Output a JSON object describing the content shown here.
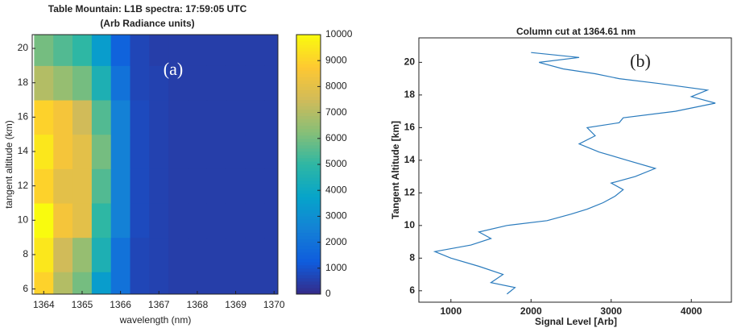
{
  "chart_data": [
    {
      "type": "heatmap",
      "title": "Table Mountain: L1B spectra: 17:59:05 UTC",
      "subtitle": "(Arb Radiance units)",
      "x_label": "wavelength (nm)",
      "y_label": "tangent altitude (km)",
      "annotation": "(a)",
      "x": [
        1364,
        1364.5,
        1365,
        1365.5,
        1366,
        1366.5,
        1367,
        1367.5,
        1368,
        1368.5,
        1369,
        1369.5,
        1370
      ],
      "y": [
        6,
        8,
        10,
        12,
        14,
        16,
        18,
        20
      ],
      "z": [
        [
          9000,
          7000,
          6000,
          3500,
          2000,
          700,
          600,
          500,
          500,
          500,
          500,
          500,
          500
        ],
        [
          9500,
          7500,
          6500,
          4500,
          2000,
          700,
          600,
          500,
          500,
          500,
          500,
          500,
          500
        ],
        [
          10000,
          8500,
          8000,
          5000,
          2500,
          800,
          600,
          500,
          500,
          500,
          500,
          500,
          500
        ],
        [
          9000,
          8000,
          8000,
          5500,
          2500,
          800,
          600,
          500,
          500,
          500,
          500,
          500,
          500
        ],
        [
          9500,
          8500,
          8000,
          6000,
          2500,
          800,
          600,
          500,
          500,
          500,
          500,
          500,
          500
        ],
        [
          9000,
          8500,
          7500,
          5500,
          2500,
          800,
          600,
          500,
          500,
          500,
          500,
          500,
          500
        ],
        [
          7000,
          6500,
          6000,
          4500,
          2000,
          700,
          600,
          500,
          500,
          500,
          500,
          500,
          500
        ],
        [
          6000,
          5500,
          5000,
          3500,
          1500,
          700,
          500,
          500,
          500,
          500,
          500,
          500,
          500
        ]
      ],
      "xlim": [
        1363.7,
        1370.1
      ],
      "xticks": [
        1364,
        1365,
        1366,
        1367,
        1368,
        1369,
        1370
      ],
      "ylim": [
        5.7,
        20.8
      ],
      "yticks": [
        6,
        8,
        10,
        12,
        14,
        16,
        18,
        20
      ],
      "clim": [
        0,
        10000
      ],
      "cticks": [
        0,
        1000,
        2000,
        3000,
        4000,
        5000,
        6000,
        7000,
        8000,
        9000,
        10000
      ],
      "colormap": [
        "#352a87",
        "#0f5cdd",
        "#1481d6",
        "#06a4ca",
        "#2eb7a4",
        "#87bf77",
        "#d1bb59",
        "#fec832",
        "#f9fb0e"
      ]
    },
    {
      "type": "line",
      "title": "Column cut at 1364.61 nm",
      "x_label": "Signal Level [Arb]",
      "y_label": "Tangent Altitude [km]",
      "annotation": "(b)",
      "series": [
        {
          "color": "#2a7bbd",
          "x": [
            1700,
            1800,
            1500,
            1650,
            1350,
            1000,
            800,
            1250,
            1500,
            1350,
            1700,
            2200,
            2500,
            2700,
            2900,
            3050,
            3150,
            3000,
            3300,
            3550,
            3200,
            2850,
            2600,
            2800,
            2700,
            3100,
            3150,
            3800,
            4300,
            4000,
            4200,
            3600,
            3100,
            2800,
            2400,
            2100,
            2600,
            2000
          ],
          "values": [
            5.8,
            6.2,
            6.5,
            7.0,
            7.5,
            8.0,
            8.4,
            8.8,
            9.2,
            9.6,
            10.0,
            10.3,
            10.7,
            11.0,
            11.4,
            11.8,
            12.2,
            12.6,
            13.0,
            13.5,
            14.0,
            14.5,
            15.0,
            15.5,
            16.0,
            16.3,
            16.6,
            17.0,
            17.5,
            17.9,
            18.3,
            18.7,
            19.0,
            19.3,
            19.6,
            20.0,
            20.3,
            20.6
          ]
        }
      ],
      "xlim": [
        600,
        4500
      ],
      "xticks": [
        1000,
        2000,
        3000,
        4000
      ],
      "ylim": [
        5.3,
        21.5
      ],
      "yticks": [
        6,
        8,
        10,
        12,
        14,
        16,
        18,
        20
      ]
    }
  ]
}
